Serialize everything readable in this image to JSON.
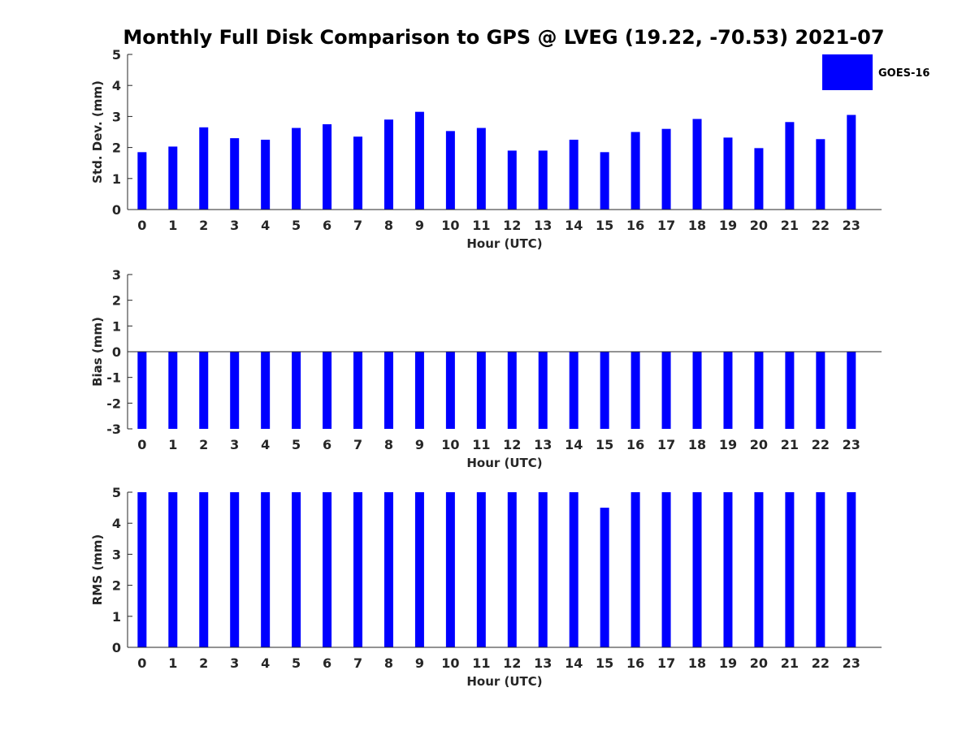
{
  "chart_data": {
    "title": "Monthly Full Disk Comparison to GPS @ LVEG (19.22, -70.53) 2021-07",
    "legend": {
      "position": "top-right",
      "entries": [
        "GOES-16"
      ]
    },
    "series_color": "#0000ff",
    "panels": [
      {
        "type": "bar",
        "xlabel": "Hour (UTC)",
        "ylabel": "Std. Dev. (mm)",
        "ylim": [
          0,
          5
        ],
        "yticks": [
          "0",
          "1",
          "2",
          "3",
          "4",
          "5"
        ],
        "categories": [
          "0",
          "1",
          "2",
          "3",
          "4",
          "5",
          "6",
          "7",
          "8",
          "9",
          "10",
          "11",
          "12",
          "13",
          "14",
          "15",
          "16",
          "17",
          "18",
          "19",
          "20",
          "21",
          "22",
          "23"
        ],
        "series": [
          {
            "name": "GOES-16",
            "values": [
              1.85,
              2.03,
              2.65,
              2.3,
              2.25,
              2.63,
              2.75,
              2.35,
              2.9,
              3.15,
              2.53,
              2.63,
              1.9,
              1.9,
              2.25,
              1.85,
              2.5,
              2.6,
              2.92,
              2.32,
              1.98,
              2.82,
              2.27,
              3.05
            ]
          }
        ]
      },
      {
        "type": "bar",
        "xlabel": "Hour (UTC)",
        "ylabel": "Bias (mm)",
        "ylim": [
          -3,
          3
        ],
        "yticks": [
          "-3",
          "-2",
          "-1",
          "0",
          "1",
          "2",
          "3"
        ],
        "categories": [
          "0",
          "1",
          "2",
          "3",
          "4",
          "5",
          "6",
          "7",
          "8",
          "9",
          "10",
          "11",
          "12",
          "13",
          "14",
          "15",
          "16",
          "17",
          "18",
          "19",
          "20",
          "21",
          "22",
          "23"
        ],
        "series": [
          {
            "name": "GOES-16",
            "values": [
              -3,
              -3,
              -3,
              -3,
              -3,
              -3,
              -3,
              -3,
              -3,
              -3,
              -3,
              -3,
              -3,
              -3,
              -3,
              -3,
              -3,
              -3,
              -3,
              -3,
              -3,
              -3,
              -3,
              -3
            ]
          }
        ]
      },
      {
        "type": "bar",
        "xlabel": "Hour (UTC)",
        "ylabel": "RMS (mm)",
        "ylim": [
          0,
          5
        ],
        "yticks": [
          "0",
          "1",
          "2",
          "3",
          "4",
          "5"
        ],
        "categories": [
          "0",
          "1",
          "2",
          "3",
          "4",
          "5",
          "6",
          "7",
          "8",
          "9",
          "10",
          "11",
          "12",
          "13",
          "14",
          "15",
          "16",
          "17",
          "18",
          "19",
          "20",
          "21",
          "22",
          "23"
        ],
        "series": [
          {
            "name": "GOES-16",
            "values": [
              5,
              5,
              5,
              5,
              5,
              5,
              5,
              5,
              5,
              5,
              5,
              5,
              5,
              5,
              5,
              4.5,
              5,
              5,
              5,
              5,
              5,
              5,
              5,
              5
            ]
          }
        ]
      }
    ]
  }
}
